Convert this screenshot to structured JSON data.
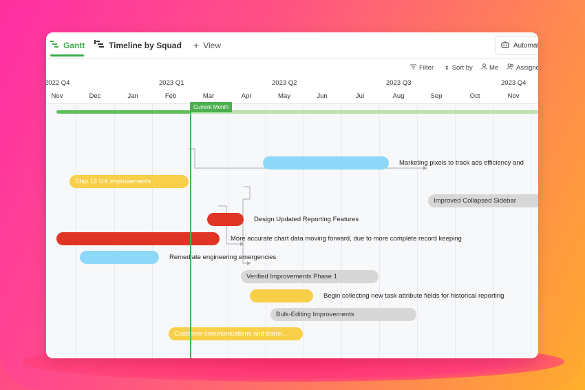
{
  "tabs": {
    "gantt": "Gantt",
    "squad": "Timeline by Squad",
    "view": "View",
    "automate": "Automate"
  },
  "toolbar": {
    "filter": "Filter",
    "sort": "Sort by",
    "me": "Me",
    "assignee": "Assignee"
  },
  "quarters": [
    "2022 Q4",
    "2023 Q1",
    "2023 Q2",
    "2023 Q3",
    "2023 Q4"
  ],
  "months": [
    "Nov",
    "Dec",
    "Jan",
    "Feb",
    "Mar",
    "Apr",
    "May",
    "Jun",
    "Jul",
    "Aug",
    "Sep",
    "Oct",
    "Nov"
  ],
  "current_month_label": "Current Month",
  "colors": {
    "green": "#4caf50",
    "blue": "#8dd8f8",
    "yellow": "#f8cf48",
    "red": "#e03424",
    "gray": "#d7d7d7"
  },
  "tasks": [
    {
      "name": "Marketing pixels to track ads efficiency and",
      "color": "blue"
    },
    {
      "name": "Ship 12 UX improvements",
      "color": "yellow"
    },
    {
      "name": "Improved Collapsed Sidebar",
      "color": "gray"
    },
    {
      "name": "Design Updated Reporting Features",
      "color": "red"
    },
    {
      "name": "More accurate chart data moving forward, due to more complete record keeping",
      "color": "red"
    },
    {
      "name": "Remediate engineering emergencies",
      "color": "blue"
    },
    {
      "name": "Verified Improvements Phase 1",
      "color": "gray"
    },
    {
      "name": "Begin collecting new task attribute fields for historical reporting",
      "color": "yellow"
    },
    {
      "name": "Bulk-Editing Improvements",
      "color": "gray"
    },
    {
      "name": "Customer communications and transi...",
      "color": "yellow"
    }
  ]
}
